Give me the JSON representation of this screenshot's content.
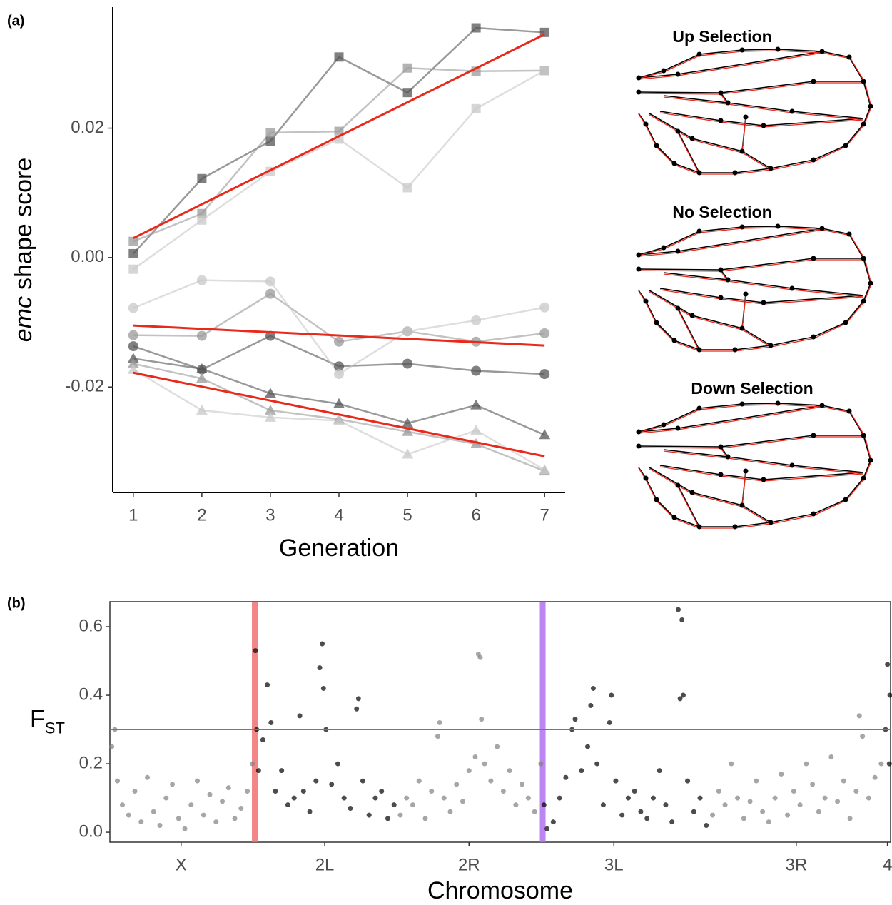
{
  "chart_data": [
    {
      "type": "line",
      "panel_label": "(a)",
      "xlabel": "Generation",
      "ylabel": [
        "emc",
        "shape score"
      ],
      "x": [
        1,
        2,
        3,
        4,
        5,
        6,
        7
      ],
      "xlim": [
        0.7,
        7.3
      ],
      "xticks": [
        1,
        2,
        3,
        4,
        5,
        6,
        7
      ],
      "ylim": [
        -0.0363,
        0.0387
      ],
      "yticks": [
        -0.02,
        {
          "value": 0,
          "label": "0.00"
        },
        0.02
      ],
      "border": false,
      "series": [
        {
          "marker": "square",
          "color": "#555555",
          "values": [
            0.0006,
            0.0122,
            0.018,
            0.031,
            0.0255,
            0.0355,
            0.0348
          ]
        },
        {
          "marker": "square",
          "color": "#9a9a9a",
          "values": [
            0.0025,
            0.0068,
            0.0193,
            0.0195,
            0.0293,
            0.0288,
            0.0289
          ]
        },
        {
          "marker": "square",
          "color": "#c8c8c8",
          "values": [
            -0.0018,
            0.0058,
            0.0133,
            0.0183,
            0.0108,
            0.023,
            0.0289
          ]
        },
        {
          "marker": "circle",
          "color": "#555555",
          "values": [
            -0.0137,
            -0.0173,
            -0.0121,
            -0.0168,
            -0.0164,
            -0.0175,
            -0.018
          ]
        },
        {
          "marker": "circle",
          "color": "#9a9a9a",
          "values": [
            -0.012,
            -0.0121,
            -0.0056,
            -0.013,
            -0.0114,
            -0.013,
            -0.0117
          ]
        },
        {
          "marker": "circle",
          "color": "#c8c8c8",
          "values": [
            -0.0078,
            -0.0035,
            -0.0037,
            -0.018,
            -0.0114,
            -0.0097,
            -0.0077
          ]
        },
        {
          "marker": "triangle",
          "color": "#555555",
          "values": [
            -0.0156,
            -0.0172,
            -0.021,
            -0.0226,
            -0.0256,
            -0.0228,
            -0.0274
          ]
        },
        {
          "marker": "triangle",
          "color": "#9a9a9a",
          "values": [
            -0.0164,
            -0.0187,
            -0.0236,
            -0.025,
            -0.0269,
            -0.0288,
            -0.033
          ]
        },
        {
          "marker": "triangle",
          "color": "#c8c8c8",
          "values": [
            -0.0173,
            -0.0236,
            -0.0247,
            -0.0252,
            -0.0304,
            -0.0267,
            -0.0328
          ]
        }
      ],
      "fits": [
        {
          "color": "#e8291c",
          "x": [
            1,
            7
          ],
          "values": [
            0.003,
            0.0345
          ]
        },
        {
          "color": "#e8291c",
          "x": [
            1,
            7
          ],
          "values": [
            -0.0105,
            -0.0136
          ]
        },
        {
          "color": "#e8291c",
          "x": [
            1,
            7
          ],
          "values": [
            -0.0178,
            -0.0307
          ]
        }
      ],
      "annotations": [
        "Up Selection",
        "No Selection",
        "Down Selection"
      ]
    },
    {
      "type": "scatter",
      "panel_label": "(b)",
      "xlabel": "Chromosome",
      "ylabel": [
        "F",
        "ST"
      ],
      "xlim": [
        0,
        125
      ],
      "xticks": [
        {
          "value": 11.4,
          "label": "X"
        },
        {
          "value": 34.4,
          "label": "2L"
        },
        {
          "value": 57.5,
          "label": "2R"
        },
        {
          "value": 80.7,
          "label": "3L"
        },
        {
          "value": 109.9,
          "label": "3R"
        },
        {
          "value": 124.5,
          "label": "4"
        }
      ],
      "ylim": [
        -0.029,
        0.673
      ],
      "yticks": [
        {
          "value": 0,
          "label": "0.0"
        },
        0.2,
        0.4,
        0.6
      ],
      "border": true,
      "threshold": 0.3,
      "threshold_color": "#777777",
      "highlights": [
        {
          "x": 23.2,
          "color": "#f07070"
        },
        {
          "x": 69.3,
          "color": "#b070f0"
        }
      ],
      "series": [
        {
          "color": "#808080",
          "x": [
            0.3,
            0.8,
            1.2,
            2,
            3,
            4,
            5,
            6,
            7,
            8,
            9,
            10,
            11,
            12,
            13,
            14,
            15,
            16,
            17,
            18,
            19,
            20,
            21,
            22,
            22.8,
            46.5,
            47.5,
            48.5,
            49.5,
            50.5,
            51.5,
            52.5,
            52.8,
            53.5,
            54.5,
            55.5,
            56.5,
            57.5,
            58.5,
            59,
            59.3,
            59.5,
            60,
            61,
            62,
            63,
            64,
            65,
            66,
            67,
            68,
            69,
            96.5,
            97.5,
            98.5,
            99.5,
            100.5,
            101.5,
            102.5,
            103.5,
            104.5,
            105.5,
            106.5,
            107.5,
            108.5,
            109.5,
            110.5,
            111.5,
            112.5,
            113.5,
            114.5,
            115.5,
            116.5,
            117.5,
            118.5,
            119.5,
            120,
            120.5,
            121.5,
            122.5,
            123.5
          ],
          "values": [
            0.25,
            0.3,
            0.15,
            0.08,
            0.05,
            0.12,
            0.03,
            0.16,
            0.06,
            0.02,
            0.1,
            0.14,
            0.04,
            0.01,
            0.08,
            0.15,
            0.05,
            0.11,
            0.03,
            0.09,
            0.13,
            0.04,
            0.07,
            0.12,
            0.2,
            0.05,
            0.1,
            0.08,
            0.15,
            0.04,
            0.12,
            0.28,
            0.32,
            0.1,
            0.06,
            0.14,
            0.09,
            0.18,
            0.22,
            0.52,
            0.51,
            0.33,
            0.2,
            0.15,
            0.25,
            0.12,
            0.18,
            0.08,
            0.14,
            0.1,
            0.06,
            0.2,
            0.05,
            0.12,
            0.08,
            0.2,
            0.1,
            0.04,
            0.09,
            0.15,
            0.06,
            0.03,
            0.1,
            0.17,
            0.05,
            0.12,
            0.08,
            0.2,
            0.14,
            0.06,
            0.1,
            0.22,
            0.09,
            0.15,
            0.04,
            0.12,
            0.34,
            0.28,
            0.1,
            0.16,
            0.2
          ]
        },
        {
          "color": "#000000",
          "x": [
            23.3,
            23.5,
            23.8,
            24.5,
            25.2,
            25.8,
            26.5,
            27.5,
            28.5,
            29.5,
            30.4,
            31,
            32,
            33,
            33.6,
            34,
            34.2,
            34.6,
            35.5,
            36.5,
            37.5,
            38.5,
            39.5,
            39.8,
            40.5,
            41.5,
            42.5,
            43.5,
            44.5,
            45.5,
            69.5,
            70,
            71,
            72,
            73,
            74,
            74.5,
            75.5,
            76.5,
            77,
            77.4,
            78,
            79,
            80,
            80.3,
            81,
            82,
            83,
            84,
            85,
            86,
            87,
            88,
            89,
            90,
            91,
            91.6,
            91.3,
            91.8,
            92.5,
            93.5,
            94.5,
            95.5,
            124.2,
            124.5,
            124.8,
            124.9
          ],
          "values": [
            0.53,
            0.3,
            0.18,
            0.27,
            0.43,
            0.32,
            0.12,
            0.18,
            0.08,
            0.1,
            0.34,
            0.12,
            0.06,
            0.15,
            0.48,
            0.55,
            0.42,
            0.3,
            0.14,
            0.2,
            0.1,
            0.07,
            0.36,
            0.39,
            0.15,
            0.05,
            0.1,
            0.12,
            0.04,
            0.08,
            0.08,
            0.01,
            0.03,
            0.1,
            0.16,
            0.3,
            0.33,
            0.18,
            0.25,
            0.37,
            0.42,
            0.2,
            0.08,
            0.32,
            0.4,
            0.15,
            0.05,
            0.1,
            0.12,
            0.06,
            0.04,
            0.1,
            0.18,
            0.08,
            0.03,
            0.65,
            0.62,
            0.39,
            0.4,
            0.15,
            0.06,
            0.1,
            0.02,
            0.3,
            0.49,
            0.2,
            0.4
          ]
        }
      ]
    }
  ]
}
